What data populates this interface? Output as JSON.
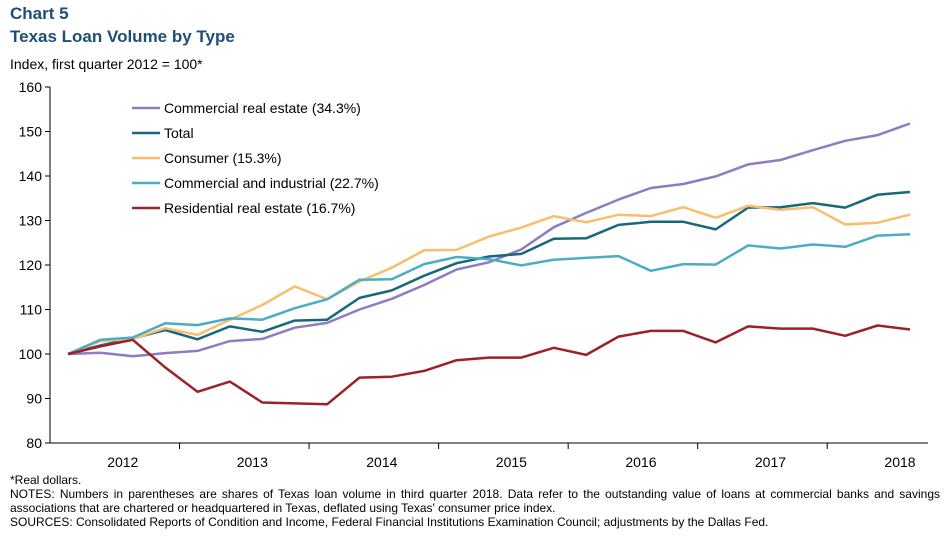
{
  "header": {
    "chart_number": "Chart 5",
    "title": "Texas Loan Volume by Type",
    "subtitle": "Index, first quarter 2012 = 100*"
  },
  "notes": {
    "footnote": "*Real dollars.",
    "notes": "NOTES: Numbers in parentheses are shares of Texas loan volume in third quarter 2018. Data refer to the outstanding value of loans at commercial banks and savings associations that are chartered or headquartered in Texas, deflated using Texas' consumer price index.",
    "sources": "SOURCES: Consolidated Reports of Condition and Income, Federal Financial Institutions Examination Council; adjustments by the Dallas Fed."
  },
  "chart_data": {
    "type": "line",
    "title": "Texas Loan Volume by Type",
    "ylabel": "Index, first quarter 2012 = 100*",
    "ylim": [
      80,
      160
    ],
    "yticks": [
      80,
      90,
      100,
      110,
      120,
      130,
      140,
      150,
      160
    ],
    "x_year_labels": [
      "2012",
      "2013",
      "2014",
      "2015",
      "2016",
      "2017",
      "2018"
    ],
    "x": [
      "2012Q1",
      "2012Q2",
      "2012Q3",
      "2012Q4",
      "2013Q1",
      "2013Q2",
      "2013Q3",
      "2013Q4",
      "2014Q1",
      "2014Q2",
      "2014Q3",
      "2014Q4",
      "2015Q1",
      "2015Q2",
      "2015Q3",
      "2015Q4",
      "2016Q1",
      "2016Q2",
      "2016Q3",
      "2016Q4",
      "2017Q1",
      "2017Q2",
      "2017Q3",
      "2017Q4",
      "2018Q1",
      "2018Q2",
      "2018Q3"
    ],
    "grid": false,
    "legend_position": "top-left",
    "series": [
      {
        "name": "Commercial real estate (34.3%)",
        "color": "#8e7cc3",
        "values": [
          100,
          100.3,
          99.5,
          100.2,
          100.7,
          102.9,
          103.4,
          105.9,
          107,
          110,
          112.4,
          115.5,
          119,
          120.6,
          123.5,
          128.5,
          131.7,
          134.7,
          137.3,
          138.2,
          139.9,
          142.6,
          143.6,
          145.8,
          147.9,
          149.2,
          151.8
        ]
      },
      {
        "name": "Total",
        "color": "#17687a",
        "values": [
          100,
          101.9,
          103.5,
          105.4,
          103.3,
          106.2,
          105,
          107.5,
          107.7,
          112.6,
          114.3,
          117.6,
          120.4,
          121.9,
          122.5,
          125.9,
          126,
          129,
          129.7,
          129.7,
          128,
          132.9,
          133,
          133.9,
          132.9,
          135.8,
          136.4
        ]
      },
      {
        "name": "Consumer (15.3%)",
        "color": "#f9bd6c",
        "values": [
          100,
          102.9,
          103.4,
          105.8,
          104.3,
          107.7,
          111,
          115.2,
          112.3,
          116.3,
          119.4,
          123.3,
          123.4,
          126.4,
          128.4,
          131,
          129.6,
          131.3,
          131,
          133,
          130.6,
          133.3,
          132.4,
          133,
          129.1,
          129.5,
          131.3
        ]
      },
      {
        "name": "Commercial and industrial (22.7%)",
        "color": "#4bacc6",
        "values": [
          100,
          103.2,
          103.7,
          106.9,
          106.5,
          108,
          107.7,
          110.3,
          112.3,
          116.7,
          116.8,
          120.2,
          121.8,
          121.3,
          119.9,
          121.2,
          121.6,
          122,
          118.7,
          120.2,
          120.1,
          124.4,
          123.7,
          124.6,
          124.1,
          126.6,
          126.9
        ]
      },
      {
        "name": "Residential real estate (16.7%)",
        "color": "#9b2226",
        "values": [
          100,
          101.7,
          103.2,
          97,
          91.5,
          93.8,
          89.1,
          88.9,
          88.7,
          94.7,
          94.9,
          96.2,
          98.6,
          99.2,
          99.2,
          101.4,
          99.8,
          103.9,
          105.2,
          105.2,
          102.6,
          106.2,
          105.7,
          105.7,
          104.1,
          106.4,
          105.5
        ]
      }
    ]
  }
}
